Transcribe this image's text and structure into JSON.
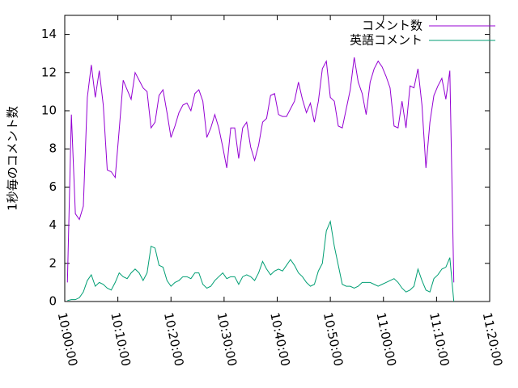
{
  "chart_data": {
    "type": "line",
    "ylabel": "1秒毎のコメント数",
    "x": [
      "10:00:30",
      "10:01:15",
      "10:02:00",
      "10:02:45",
      "10:03:30",
      "10:04:15",
      "10:05:00",
      "10:05:45",
      "10:06:30",
      "10:07:15",
      "10:08:00",
      "10:08:45",
      "10:09:30",
      "10:10:15",
      "10:11:00",
      "10:11:45",
      "10:12:30",
      "10:13:15",
      "10:14:00",
      "10:14:45",
      "10:15:30",
      "10:16:15",
      "10:17:00",
      "10:17:45",
      "10:18:30",
      "10:19:15",
      "10:20:00",
      "10:20:45",
      "10:21:30",
      "10:22:15",
      "10:23:00",
      "10:23:45",
      "10:24:30",
      "10:25:15",
      "10:26:00",
      "10:26:45",
      "10:27:30",
      "10:28:15",
      "10:29:00",
      "10:29:45",
      "10:30:30",
      "10:31:15",
      "10:32:00",
      "10:32:45",
      "10:33:30",
      "10:34:15",
      "10:35:00",
      "10:35:45",
      "10:36:30",
      "10:37:15",
      "10:38:00",
      "10:38:45",
      "10:39:30",
      "10:40:15",
      "10:41:00",
      "10:41:45",
      "10:42:30",
      "10:43:15",
      "10:44:00",
      "10:44:45",
      "10:45:30",
      "10:46:15",
      "10:47:00",
      "10:47:45",
      "10:48:30",
      "10:49:15",
      "10:50:00",
      "10:50:45",
      "10:51:30",
      "10:52:15",
      "10:53:00",
      "10:53:45",
      "10:54:30",
      "10:55:15",
      "10:56:00",
      "10:56:45",
      "10:57:30",
      "10:58:15",
      "10:59:00",
      "10:59:45",
      "11:00:30",
      "11:01:15",
      "11:02:00",
      "11:02:45",
      "11:03:30",
      "11:04:15",
      "11:05:00",
      "11:05:45",
      "11:06:30",
      "11:07:15",
      "11:08:00",
      "11:08:45",
      "11:09:30",
      "11:10:15",
      "11:11:00",
      "11:11:45",
      "11:12:30",
      "11:13:15"
    ],
    "series": [
      {
        "name": "コメント数",
        "color": "#9400d3",
        "values": [
          1.0,
          9.8,
          4.6,
          4.3,
          5.0,
          10.7,
          12.4,
          10.7,
          12.1,
          10.3,
          6.9,
          6.8,
          6.5,
          9.0,
          11.6,
          11.1,
          10.6,
          12.0,
          11.6,
          11.2,
          11.0,
          9.1,
          9.4,
          10.8,
          11.1,
          9.9,
          8.6,
          9.2,
          9.9,
          10.3,
          10.4,
          10.0,
          10.9,
          11.1,
          10.5,
          8.6,
          9.1,
          9.8,
          9.1,
          8.1,
          7.0,
          9.1,
          9.1,
          7.5,
          9.1,
          9.4,
          8.1,
          7.4,
          8.2,
          9.4,
          9.6,
          10.8,
          10.9,
          9.8,
          9.7,
          9.7,
          10.1,
          10.5,
          11.5,
          10.6,
          9.9,
          10.4,
          9.4,
          10.5,
          12.2,
          12.6,
          10.7,
          10.5,
          9.2,
          9.1,
          10.1,
          11.1,
          12.8,
          11.5,
          10.9,
          9.8,
          11.5,
          12.2,
          12.6,
          12.3,
          11.8,
          11.2,
          9.2,
          9.1,
          10.5,
          9.1,
          11.3,
          11.2,
          12.2,
          10.3,
          7.0,
          9.4,
          10.8,
          11.3,
          11.7,
          10.6,
          12.1,
          1.0
        ]
      },
      {
        "name": "英語コメント",
        "color": "#009e73",
        "values": [
          0.05,
          0.1,
          0.1,
          0.2,
          0.5,
          1.1,
          1.4,
          0.8,
          1.0,
          0.9,
          0.7,
          0.6,
          1.0,
          1.5,
          1.3,
          1.2,
          1.5,
          1.7,
          1.5,
          1.1,
          1.5,
          2.9,
          2.8,
          1.9,
          1.8,
          1.1,
          0.8,
          1.0,
          1.1,
          1.3,
          1.3,
          1.2,
          1.5,
          1.5,
          0.9,
          0.7,
          0.8,
          1.1,
          1.3,
          1.5,
          1.2,
          1.3,
          1.3,
          0.9,
          1.3,
          1.4,
          1.3,
          1.1,
          1.5,
          2.1,
          1.7,
          1.4,
          1.6,
          1.7,
          1.6,
          1.9,
          2.2,
          1.9,
          1.5,
          1.3,
          1.0,
          0.8,
          0.9,
          1.6,
          2.0,
          3.7,
          4.2,
          2.9,
          1.9,
          0.9,
          0.8,
          0.8,
          0.7,
          0.8,
          1.0,
          1.0,
          1.0,
          0.9,
          0.8,
          0.9,
          1.0,
          1.1,
          1.2,
          1.0,
          0.7,
          0.5,
          0.6,
          0.8,
          1.7,
          1.1,
          0.6,
          0.5,
          1.2,
          1.4,
          1.7,
          1.8,
          2.3,
          0.0
        ]
      }
    ],
    "xlim": [
      "10:00:00",
      "11:20:00"
    ],
    "xticks": [
      "10:00:00",
      "10:10:00",
      "10:20:00",
      "10:30:00",
      "10:40:00",
      "10:50:00",
      "11:00:00",
      "11:10:00",
      "11:20:00"
    ],
    "ylim": [
      0,
      15
    ],
    "yticks": [
      0,
      2,
      4,
      6,
      8,
      10,
      12,
      14
    ],
    "grid": false,
    "legend": "top-right"
  }
}
